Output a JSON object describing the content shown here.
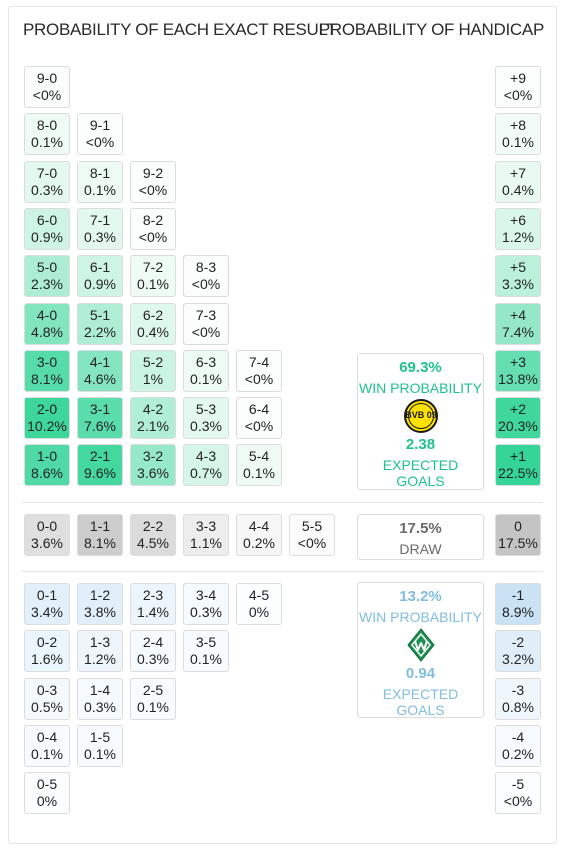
{
  "headers": {
    "exact_result": "PROBABILITY OF EACH EXACT RESULT",
    "handicap": "PROBABILITY OF HANDICAP"
  },
  "colors": {
    "home_text": "#1fc38a",
    "away_text": "#80bde0",
    "draw_text": "#6a6a6a"
  },
  "home_wins": [
    {
      "score": "9-0",
      "prob": "<0%",
      "pct": 0
    },
    {
      "score": "8-0",
      "prob": "0.1%",
      "pct": 0.1
    },
    {
      "score": "9-1",
      "prob": "<0%",
      "pct": 0
    },
    {
      "score": "7-0",
      "prob": "0.3%",
      "pct": 0.3
    },
    {
      "score": "8-1",
      "prob": "0.1%",
      "pct": 0.1
    },
    {
      "score": "9-2",
      "prob": "<0%",
      "pct": 0
    },
    {
      "score": "6-0",
      "prob": "0.9%",
      "pct": 0.9
    },
    {
      "score": "7-1",
      "prob": "0.3%",
      "pct": 0.3
    },
    {
      "score": "8-2",
      "prob": "<0%",
      "pct": 0
    },
    {
      "score": "5-0",
      "prob": "2.3%",
      "pct": 2.3
    },
    {
      "score": "6-1",
      "prob": "0.9%",
      "pct": 0.9
    },
    {
      "score": "7-2",
      "prob": "0.1%",
      "pct": 0.1
    },
    {
      "score": "8-3",
      "prob": "<0%",
      "pct": 0
    },
    {
      "score": "4-0",
      "prob": "4.8%",
      "pct": 4.8
    },
    {
      "score": "5-1",
      "prob": "2.2%",
      "pct": 2.2
    },
    {
      "score": "6-2",
      "prob": "0.4%",
      "pct": 0.4
    },
    {
      "score": "7-3",
      "prob": "<0%",
      "pct": 0
    },
    {
      "score": "3-0",
      "prob": "8.1%",
      "pct": 8.1
    },
    {
      "score": "4-1",
      "prob": "4.6%",
      "pct": 4.6
    },
    {
      "score": "5-2",
      "prob": "1%",
      "pct": 1
    },
    {
      "score": "6-3",
      "prob": "0.1%",
      "pct": 0.1
    },
    {
      "score": "7-4",
      "prob": "<0%",
      "pct": 0
    },
    {
      "score": "2-0",
      "prob": "10.2%",
      "pct": 10.2
    },
    {
      "score": "3-1",
      "prob": "7.6%",
      "pct": 7.6
    },
    {
      "score": "4-2",
      "prob": "2.1%",
      "pct": 2.1
    },
    {
      "score": "5-3",
      "prob": "0.3%",
      "pct": 0.3
    },
    {
      "score": "6-4",
      "prob": "<0%",
      "pct": 0
    },
    {
      "score": "1-0",
      "prob": "8.6%",
      "pct": 8.6
    },
    {
      "score": "2-1",
      "prob": "9.6%",
      "pct": 9.6
    },
    {
      "score": "3-2",
      "prob": "3.6%",
      "pct": 3.6
    },
    {
      "score": "4-3",
      "prob": "0.7%",
      "pct": 0.7
    },
    {
      "score": "5-4",
      "prob": "0.1%",
      "pct": 0.1
    }
  ],
  "draws": [
    {
      "score": "0-0",
      "prob": "3.6%",
      "pct": 3.6
    },
    {
      "score": "1-1",
      "prob": "8.1%",
      "pct": 8.1
    },
    {
      "score": "2-2",
      "prob": "4.5%",
      "pct": 4.5
    },
    {
      "score": "3-3",
      "prob": "1.1%",
      "pct": 1.1
    },
    {
      "score": "4-4",
      "prob": "0.2%",
      "pct": 0.2
    },
    {
      "score": "5-5",
      "prob": "<0%",
      "pct": 0
    }
  ],
  "away_wins": [
    {
      "score": "0-1",
      "prob": "3.4%",
      "pct": 3.4
    },
    {
      "score": "1-2",
      "prob": "3.8%",
      "pct": 3.8
    },
    {
      "score": "2-3",
      "prob": "1.4%",
      "pct": 1.4
    },
    {
      "score": "3-4",
      "prob": "0.3%",
      "pct": 0.3
    },
    {
      "score": "4-5",
      "prob": "0%",
      "pct": 0
    },
    {
      "score": "0-2",
      "prob": "1.6%",
      "pct": 1.6
    },
    {
      "score": "1-3",
      "prob": "1.2%",
      "pct": 1.2
    },
    {
      "score": "2-4",
      "prob": "0.3%",
      "pct": 0.3
    },
    {
      "score": "3-5",
      "prob": "0.1%",
      "pct": 0.1
    },
    {
      "score": "0-3",
      "prob": "0.5%",
      "pct": 0.5
    },
    {
      "score": "1-4",
      "prob": "0.3%",
      "pct": 0.3
    },
    {
      "score": "2-5",
      "prob": "0.1%",
      "pct": 0.1
    },
    {
      "score": "0-4",
      "prob": "0.1%",
      "pct": 0.1
    },
    {
      "score": "1-5",
      "prob": "0.1%",
      "pct": 0.1
    },
    {
      "score": "0-5",
      "prob": "0%",
      "pct": 0
    }
  ],
  "handicap_home": [
    {
      "label": "+9",
      "prob": "<0%",
      "pct": 0
    },
    {
      "label": "+8",
      "prob": "0.1%",
      "pct": 0.1
    },
    {
      "label": "+7",
      "prob": "0.4%",
      "pct": 0.4
    },
    {
      "label": "+6",
      "prob": "1.2%",
      "pct": 1.2
    },
    {
      "label": "+5",
      "prob": "3.3%",
      "pct": 3.3
    },
    {
      "label": "+4",
      "prob": "7.4%",
      "pct": 7.4
    },
    {
      "label": "+3",
      "prob": "13.8%",
      "pct": 13.8
    },
    {
      "label": "+2",
      "prob": "20.3%",
      "pct": 20.3
    },
    {
      "label": "+1",
      "prob": "22.5%",
      "pct": 22.5
    }
  ],
  "handicap_draw": {
    "label": "0",
    "prob": "17.5%",
    "pct": 17.5
  },
  "handicap_away": [
    {
      "label": "-1",
      "prob": "8.9%",
      "pct": 8.9
    },
    {
      "label": "-2",
      "prob": "3.2%",
      "pct": 3.2
    },
    {
      "label": "-3",
      "prob": "0.8%",
      "pct": 0.8
    },
    {
      "label": "-4",
      "prob": "0.2%",
      "pct": 0.2
    },
    {
      "label": "-5",
      "prob": "<0%",
      "pct": 0
    }
  ],
  "home_summary": {
    "win_prob": "69.3%",
    "win_label": "WIN PROBABILITY",
    "xg": "2.38",
    "xg_label": "EXPECTED GOALS",
    "logo_icon": "bvb-logo-icon",
    "logo_text": "BVB 09"
  },
  "draw_summary": {
    "prob": "17.5%",
    "label": "DRAW"
  },
  "away_summary": {
    "win_prob": "13.2%",
    "win_label": "WIN PROBABILITY",
    "xg": "0.94",
    "xg_label": "EXPECTED GOALS",
    "logo_icon": "werder-logo-icon"
  }
}
